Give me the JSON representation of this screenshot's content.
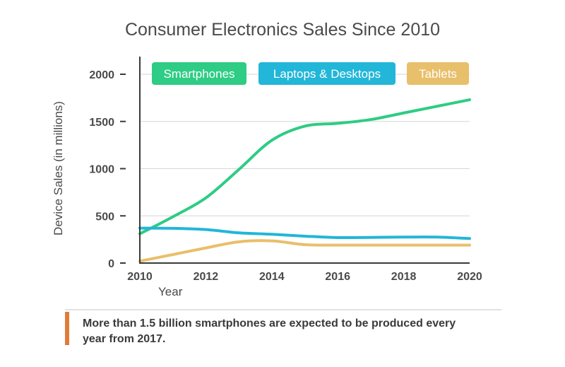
{
  "chart_data": {
    "type": "line",
    "title": "Consumer Electronics Sales Since 2010",
    "xlabel": "Year",
    "ylabel": "Device Sales (in millions)",
    "xlim": [
      2010,
      2020
    ],
    "ylim": [
      0,
      2000
    ],
    "xticks": [
      "2010",
      "2012",
      "2014",
      "2016",
      "2018",
      "2020"
    ],
    "yticks": [
      "0",
      "500",
      "1000",
      "1500",
      "2000"
    ],
    "grid": true,
    "legend": "top",
    "x": [
      2010,
      2011,
      2012,
      2013,
      2014,
      2015,
      2016,
      2017,
      2018,
      2019,
      2020
    ],
    "series": [
      {
        "name": "Smartphones",
        "color": "#2ecc84",
        "values": [
          310,
          490,
          690,
          990,
          1300,
          1450,
          1480,
          1520,
          1590,
          1660,
          1730
        ]
      },
      {
        "name": "Laptops & Desktops",
        "color": "#22b6d8",
        "values": [
          370,
          368,
          355,
          320,
          305,
          285,
          270,
          272,
          275,
          275,
          260
        ]
      },
      {
        "name": "Tablets",
        "color": "#e8bf6a",
        "values": [
          20,
          90,
          160,
          225,
          235,
          195,
          190,
          190,
          190,
          190,
          190
        ]
      }
    ]
  },
  "note": {
    "line1": "More than 1.5 billion smartphones are expected to be produced every",
    "line2": "year from 2017."
  }
}
